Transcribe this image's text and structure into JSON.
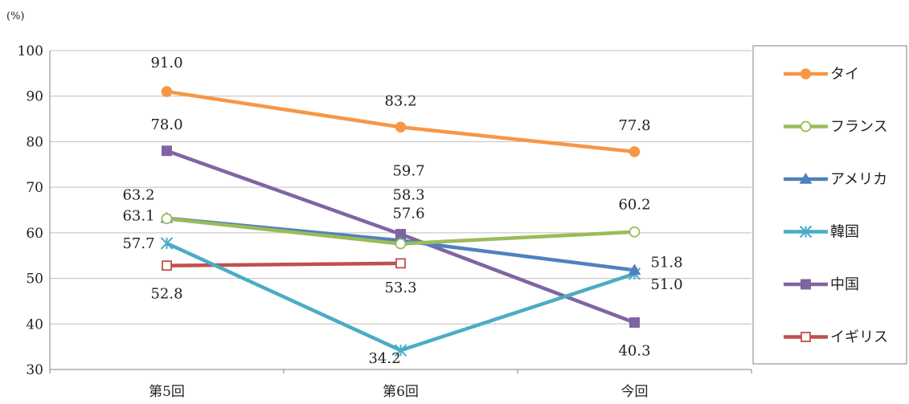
{
  "chart_data": {
    "type": "line",
    "unit_label": "(%)",
    "categories": [
      "第5回",
      "第6回",
      "今回"
    ],
    "ylim": [
      30,
      100
    ],
    "yticks": [
      30,
      40,
      50,
      60,
      70,
      80,
      90,
      100
    ],
    "grid": "horizontal",
    "legend_position": "right",
    "series": [
      {
        "name": "タイ",
        "color": "#F79646",
        "marker": "circle-filled",
        "values": [
          91.0,
          83.2,
          77.8
        ]
      },
      {
        "name": "フランス",
        "color": "#9BBB59",
        "marker": "circle-open",
        "values": [
          63.1,
          57.6,
          60.2
        ]
      },
      {
        "name": "アメリカ",
        "color": "#4F81BD",
        "marker": "triangle",
        "values": [
          63.2,
          58.3,
          51.8
        ]
      },
      {
        "name": "韓国",
        "color": "#4BACC6",
        "marker": "asterisk",
        "values": [
          57.7,
          34.2,
          51.0
        ]
      },
      {
        "name": "中国",
        "color": "#8064A2",
        "marker": "square-filled",
        "values": [
          78.0,
          59.7,
          40.3
        ]
      },
      {
        "name": "イギリス",
        "color": "#C0504D",
        "marker": "square-open",
        "values": [
          52.8,
          53.3,
          null
        ]
      }
    ],
    "data_labels": [
      {
        "text": "91.0",
        "series": "タイ",
        "category": "第5回",
        "value": 91.0
      },
      {
        "text": "83.2",
        "series": "タイ",
        "category": "第6回",
        "value": 83.2
      },
      {
        "text": "77.8",
        "series": "タイ",
        "category": "今回",
        "value": 77.8
      },
      {
        "text": "78.0",
        "series": "中国",
        "category": "第5回",
        "value": 78.0
      },
      {
        "text": "59.7",
        "series": "中国",
        "category": "第6回",
        "value": 59.7
      },
      {
        "text": "40.3",
        "series": "中国",
        "category": "今回",
        "value": 40.3
      },
      {
        "text": "63.2",
        "series": "アメリカ",
        "category": "第5回",
        "value": 63.2
      },
      {
        "text": "58.3",
        "series": "アメリカ",
        "category": "第6回",
        "value": 58.3
      },
      {
        "text": "51.8",
        "series": "アメリカ",
        "category": "今回",
        "value": 51.8
      },
      {
        "text": "63.1",
        "series": "フランス",
        "category": "第5回",
        "value": 63.1
      },
      {
        "text": "57.6",
        "series": "フランス",
        "category": "第6回",
        "value": 57.6
      },
      {
        "text": "60.2",
        "series": "フランス",
        "category": "今回",
        "value": 60.2
      },
      {
        "text": "57.7",
        "series": "韓国",
        "category": "第5回",
        "value": 57.7
      },
      {
        "text": "34.2",
        "series": "韓国",
        "category": "第6回",
        "value": 34.2
      },
      {
        "text": "51.0",
        "series": "韓国",
        "category": "今回",
        "value": 51.0
      },
      {
        "text": "52.8",
        "series": "イギリス",
        "category": "第5回",
        "value": 52.8
      },
      {
        "text": "53.3",
        "series": "イギリス",
        "category": "第6回",
        "value": 53.3
      }
    ]
  }
}
